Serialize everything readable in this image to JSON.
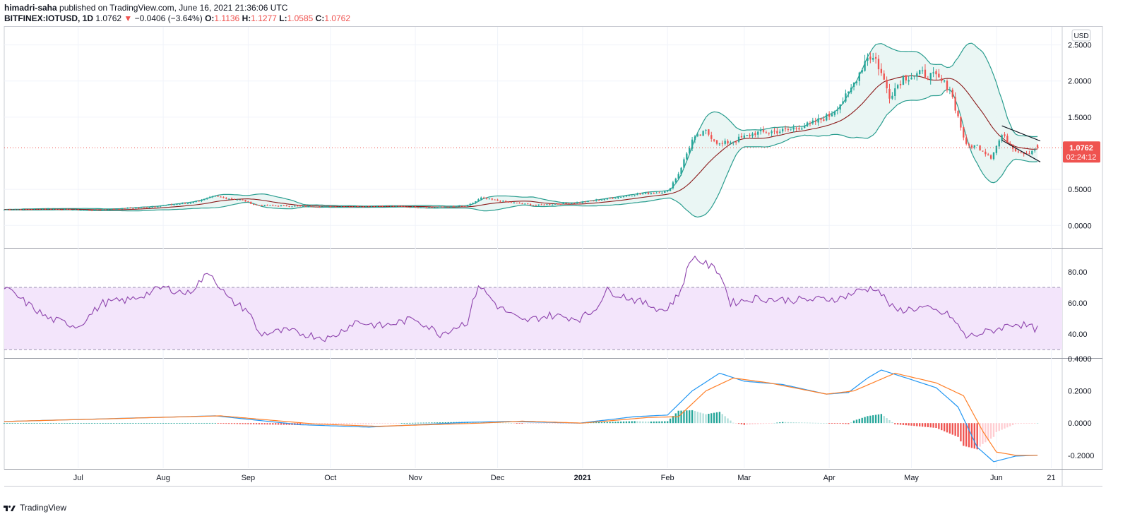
{
  "header": {
    "author": "himadri-saha",
    "published_text": " published on TradingView.com, June 16, 2021 21:36:06 UTC",
    "symbol": "BITFINEX:IOTUSD, 1D",
    "last": "1.0762",
    "change": "−0.0406 (−3.64%)",
    "o_label": "O:",
    "o_value": "1.1136",
    "h_label": "H:",
    "h_value": "1.1277",
    "l_label": "L:",
    "l_value": "1.0585",
    "c_label": "C:",
    "c_value": "1.0762"
  },
  "footer": {
    "brand": "TradingView"
  },
  "colors": {
    "up": "#26a69a",
    "down": "#ef5350",
    "bb_band": "#2a9d8f",
    "bb_fill": "#e8f5f3",
    "bb_basis": "#8b1a1a",
    "rsi": "#8e44ad",
    "rsi_fill": "#f3e5fb",
    "macd": "#2196f3",
    "signal": "#ff7f27"
  },
  "chart_data": [
    {
      "type": "candlestick",
      "panel": "price",
      "currency_label": "USD",
      "price_label": "1.0762",
      "countdown_label": "02:24:12",
      "y_ticks": [
        "2.5000",
        "2.0000",
        "1.5000",
        "0.5000",
        "0.0000"
      ],
      "ylim": [
        -0.3,
        2.75
      ],
      "x_ticks": [
        "Jul",
        "Aug",
        "Sep",
        "Oct",
        "Nov",
        "Dec",
        "2021",
        "Feb",
        "Mar",
        "Apr",
        "May",
        "Jun",
        "21"
      ],
      "x_tick_dates": [
        "2020-07-01",
        "2020-08-01",
        "2020-09-01",
        "2020-10-01",
        "2020-11-01",
        "2020-12-01",
        "2021-01-01",
        "2021-02-01",
        "2021-03-01",
        "2021-04-01",
        "2021-05-01",
        "2021-06-01",
        "2021-06-21"
      ],
      "x_range": [
        "2020-06-04",
        "2021-06-25"
      ],
      "close_anchors": [
        [
          "2020-06-04",
          0.22
        ],
        [
          "2020-06-20",
          0.23
        ],
        [
          "2020-07-05",
          0.21
        ],
        [
          "2020-07-25",
          0.25
        ],
        [
          "2020-08-10",
          0.31
        ],
        [
          "2020-08-20",
          0.4
        ],
        [
          "2020-08-30",
          0.35
        ],
        [
          "2020-09-04",
          0.28
        ],
        [
          "2020-09-15",
          0.27
        ],
        [
          "2020-10-01",
          0.26
        ],
        [
          "2020-10-20",
          0.27
        ],
        [
          "2020-11-05",
          0.25
        ],
        [
          "2020-11-20",
          0.27
        ],
        [
          "2020-11-25",
          0.38
        ],
        [
          "2020-12-05",
          0.32
        ],
        [
          "2020-12-15",
          0.28
        ],
        [
          "2020-12-31",
          0.32
        ],
        [
          "2021-01-10",
          0.37
        ],
        [
          "2021-01-20",
          0.43
        ],
        [
          "2021-02-01",
          0.47
        ],
        [
          "2021-02-05",
          0.72
        ],
        [
          "2021-02-10",
          1.18
        ],
        [
          "2021-02-15",
          1.3
        ],
        [
          "2021-02-20",
          1.12
        ],
        [
          "2021-02-25",
          1.17
        ],
        [
          "2021-03-05",
          1.28
        ],
        [
          "2021-03-15",
          1.31
        ],
        [
          "2021-03-25",
          1.4
        ],
        [
          "2021-04-01",
          1.52
        ],
        [
          "2021-04-08",
          1.82
        ],
        [
          "2021-04-15",
          2.35
        ],
        [
          "2021-04-18",
          2.3
        ],
        [
          "2021-04-23",
          1.8
        ],
        [
          "2021-04-28",
          2.05
        ],
        [
          "2021-05-05",
          2.1
        ],
        [
          "2021-05-10",
          2.05
        ],
        [
          "2021-05-15",
          1.9
        ],
        [
          "2021-05-18",
          1.5
        ],
        [
          "2021-05-21",
          1.1
        ],
        [
          "2021-05-25",
          1.1
        ],
        [
          "2021-05-30",
          0.95
        ],
        [
          "2021-06-03",
          1.25
        ],
        [
          "2021-06-08",
          1.05
        ],
        [
          "2021-06-12",
          1.0
        ],
        [
          "2021-06-16",
          1.0762
        ]
      ],
      "bollinger_period": 20,
      "bollinger_mult": 2,
      "trendlines": [
        {
          "from": [
            "2021-06-03",
            1.38
          ],
          "to": [
            "2021-06-17",
            1.17
          ]
        },
        {
          "from": [
            "2021-06-03",
            1.18
          ],
          "to": [
            "2021-06-17",
            0.88
          ]
        }
      ]
    },
    {
      "type": "line",
      "panel": "rsi",
      "y_ticks": [
        "80.00",
        "60.00",
        "40.00"
      ],
      "ylim": [
        25,
        95
      ],
      "band": [
        30,
        70
      ],
      "anchors": [
        [
          "2020-06-04",
          70
        ],
        [
          "2020-06-12",
          60
        ],
        [
          "2020-06-20",
          50
        ],
        [
          "2020-07-01",
          45
        ],
        [
          "2020-07-10",
          60
        ],
        [
          "2020-07-20",
          62
        ],
        [
          "2020-08-01",
          70
        ],
        [
          "2020-08-10",
          66
        ],
        [
          "2020-08-18",
          80
        ],
        [
          "2020-08-25",
          62
        ],
        [
          "2020-09-01",
          55
        ],
        [
          "2020-09-05",
          40
        ],
        [
          "2020-09-15",
          42
        ],
        [
          "2020-10-01",
          37
        ],
        [
          "2020-10-10",
          48
        ],
        [
          "2020-10-20",
          45
        ],
        [
          "2020-11-01",
          50
        ],
        [
          "2020-11-10",
          40
        ],
        [
          "2020-11-20",
          48
        ],
        [
          "2020-11-24",
          72
        ],
        [
          "2020-12-01",
          58
        ],
        [
          "2020-12-10",
          48
        ],
        [
          "2020-12-20",
          52
        ],
        [
          "2020-12-31",
          50
        ],
        [
          "2021-01-05",
          55
        ],
        [
          "2021-01-10",
          68
        ],
        [
          "2021-01-20",
          62
        ],
        [
          "2021-01-31",
          55
        ],
        [
          "2021-02-05",
          65
        ],
        [
          "2021-02-10",
          90
        ],
        [
          "2021-02-15",
          85
        ],
        [
          "2021-02-20",
          80
        ],
        [
          "2021-02-24",
          60
        ],
        [
          "2021-03-05",
          63
        ],
        [
          "2021-03-15",
          62
        ],
        [
          "2021-03-25",
          62
        ],
        [
          "2021-04-05",
          63
        ],
        [
          "2021-04-12",
          68
        ],
        [
          "2021-04-18",
          70
        ],
        [
          "2021-04-25",
          55
        ],
        [
          "2021-05-05",
          57
        ],
        [
          "2021-05-15",
          52
        ],
        [
          "2021-05-21",
          38
        ],
        [
          "2021-05-30",
          42
        ],
        [
          "2021-06-08",
          47
        ],
        [
          "2021-06-16",
          43
        ]
      ]
    },
    {
      "type": "line+histogram",
      "panel": "macd",
      "y_ticks": [
        "0.4000",
        "0.2000",
        "0.0000",
        "-0.2000"
      ],
      "ylim": [
        -0.28,
        0.4
      ],
      "macd_anchors": [
        [
          "2020-06-04",
          0.01
        ],
        [
          "2020-08-20",
          0.045
        ],
        [
          "2020-09-20",
          -0.01
        ],
        [
          "2020-10-15",
          -0.025
        ],
        [
          "2020-11-20",
          0.005
        ],
        [
          "2020-12-05",
          0.01
        ],
        [
          "2020-12-31",
          0.0
        ],
        [
          "2021-01-20",
          0.04
        ],
        [
          "2021-02-01",
          0.05
        ],
        [
          "2021-02-10",
          0.2
        ],
        [
          "2021-02-20",
          0.31
        ],
        [
          "2021-03-01",
          0.26
        ],
        [
          "2021-03-15",
          0.24
        ],
        [
          "2021-03-31",
          0.18
        ],
        [
          "2021-04-08",
          0.19
        ],
        [
          "2021-04-15",
          0.28
        ],
        [
          "2021-04-20",
          0.33
        ],
        [
          "2021-05-01",
          0.27
        ],
        [
          "2021-05-10",
          0.22
        ],
        [
          "2021-05-18",
          0.1
        ],
        [
          "2021-05-25",
          -0.15
        ],
        [
          "2021-05-31",
          -0.24
        ],
        [
          "2021-06-08",
          -0.205
        ],
        [
          "2021-06-16",
          -0.2
        ]
      ],
      "signal_anchors": [
        [
          "2020-06-04",
          0.01
        ],
        [
          "2020-08-22",
          0.045
        ],
        [
          "2020-09-25",
          -0.005
        ],
        [
          "2020-10-18",
          -0.02
        ],
        [
          "2020-11-25",
          0.0
        ],
        [
          "2020-12-10",
          0.012
        ],
        [
          "2021-01-01",
          0.0
        ],
        [
          "2021-01-25",
          0.035
        ],
        [
          "2021-02-05",
          0.04
        ],
        [
          "2021-02-15",
          0.2
        ],
        [
          "2021-02-25",
          0.28
        ],
        [
          "2021-03-10",
          0.25
        ],
        [
          "2021-03-31",
          0.18
        ],
        [
          "2021-04-10",
          0.2
        ],
        [
          "2021-04-25",
          0.31
        ],
        [
          "2021-05-10",
          0.25
        ],
        [
          "2021-05-20",
          0.17
        ],
        [
          "2021-05-27",
          -0.05
        ],
        [
          "2021-06-01",
          -0.18
        ],
        [
          "2021-06-08",
          -0.2
        ],
        [
          "2021-06-16",
          -0.2
        ]
      ]
    }
  ]
}
